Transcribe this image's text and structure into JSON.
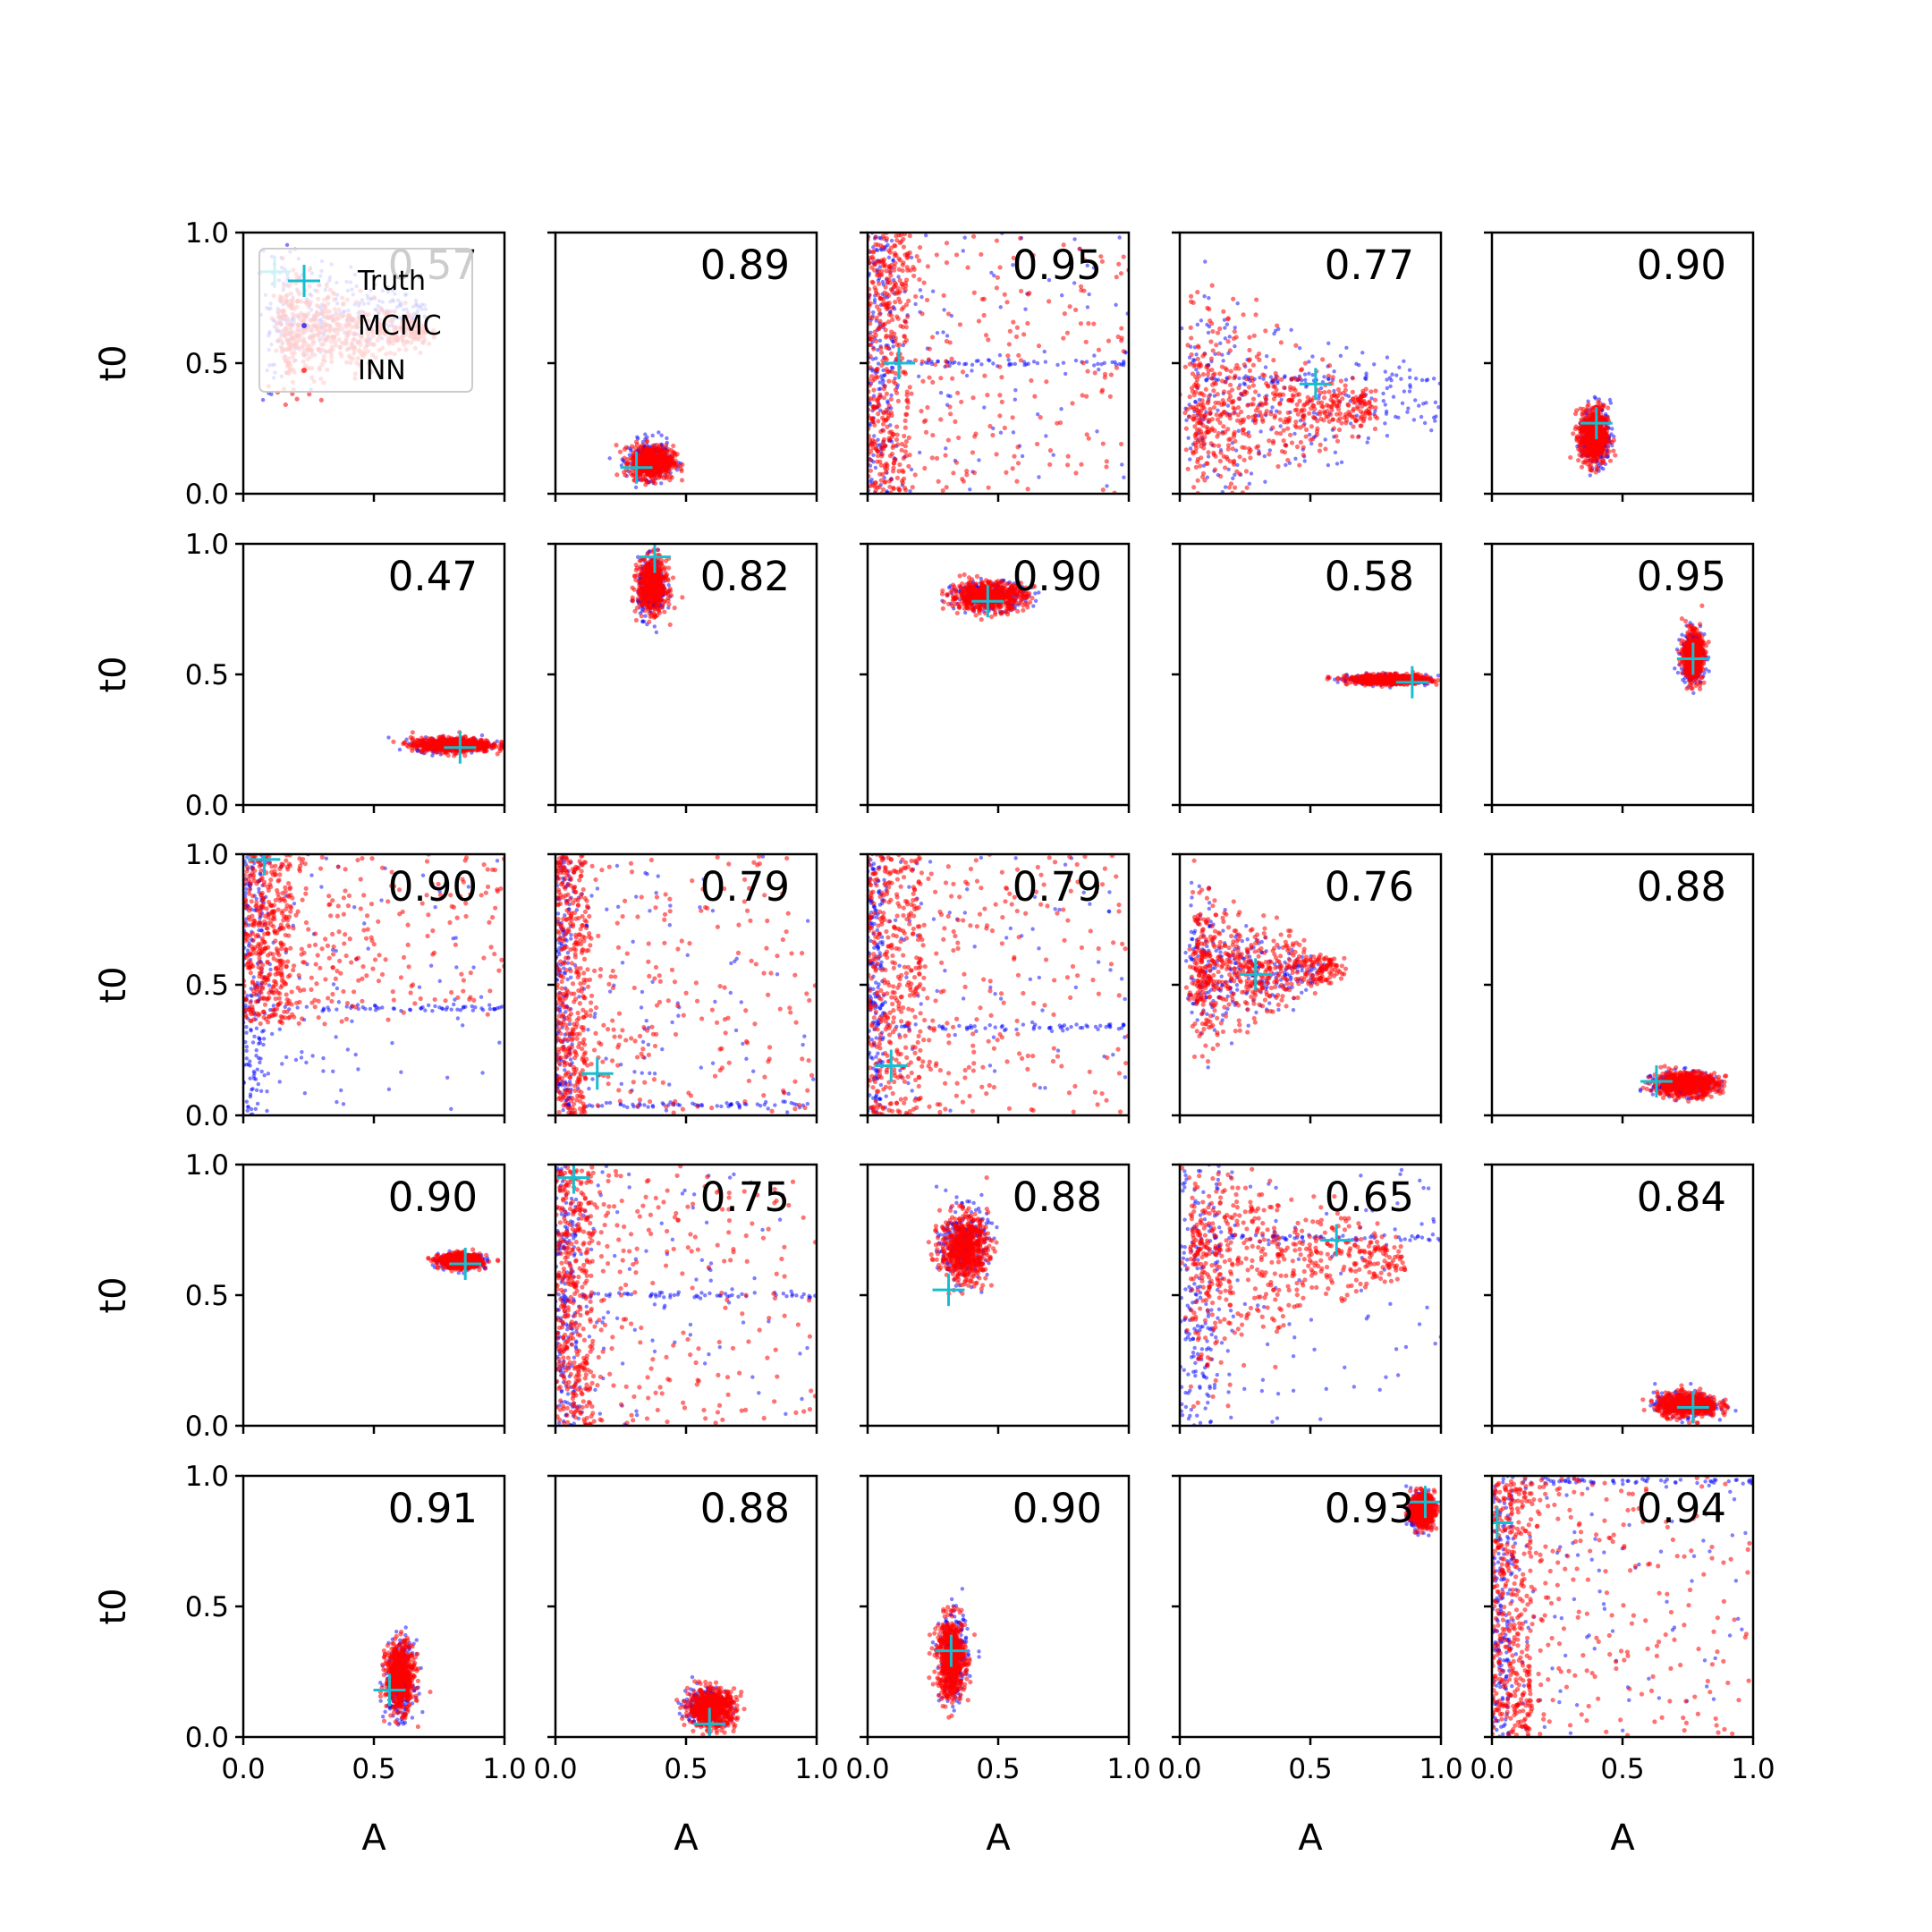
{
  "chart_data": {
    "type": "scatter",
    "layout": {
      "rows": 5,
      "cols": 5
    },
    "xlabel": "A",
    "ylabel": "t0",
    "xlim": [
      0,
      1
    ],
    "ylim": [
      0,
      1
    ],
    "xticks": [
      "0.0",
      "0.5",
      "1.0"
    ],
    "yticks": [
      "0.0",
      "0.5",
      "1.0"
    ],
    "legend": {
      "position": "upper left of first panel",
      "entries": [
        {
          "label": "Truth",
          "marker": "plus",
          "color": "#17becf"
        },
        {
          "label": "MCMC",
          "marker": "dot",
          "color": "#0000ff"
        },
        {
          "label": "INN",
          "marker": "dot",
          "color": "#ff0000"
        }
      ]
    },
    "colors": {
      "truth": "#17becf",
      "mcmc": "#0000ff",
      "inn": "#ff0000"
    },
    "panels": [
      {
        "label": "0.57",
        "truth": [
          0.12,
          0.85
        ],
        "mcmc": {
          "shape": "wedge",
          "cx": 0.1,
          "cy": 0.7,
          "sx": 0.6,
          "sy": 0.2,
          "spread": 0.35,
          "density": 0.9,
          "dir": "right"
        },
        "inn": {
          "shape": "wedge",
          "cx": 0.15,
          "cy": 0.62,
          "sx": 0.55,
          "sy": 0.18,
          "spread": 0.3,
          "density": 1.0,
          "dir": "right"
        }
      },
      {
        "label": "0.89",
        "truth": [
          0.31,
          0.1
        ],
        "mcmc": {
          "shape": "blob",
          "cx": 0.36,
          "cy": 0.13,
          "sx": 0.09,
          "sy": 0.08,
          "density": 0.8
        },
        "inn": {
          "shape": "blob",
          "cx": 0.37,
          "cy": 0.12,
          "sx": 0.09,
          "sy": 0.07,
          "density": 1.0
        }
      },
      {
        "label": "0.95",
        "truth": [
          0.12,
          0.5
        ],
        "mcmc": {
          "shape": "left-band",
          "x0": 0.0,
          "x1": 0.1,
          "density": 0.8,
          "line_y": 0.5
        },
        "inn": {
          "shape": "left-band",
          "x0": 0.0,
          "x1": 0.15,
          "density": 1.0
        }
      },
      {
        "label": "0.77",
        "truth": [
          0.52,
          0.42
        ],
        "mcmc": {
          "shape": "wedge",
          "cx": 0.05,
          "cy": 0.35,
          "sx": 1.0,
          "sy": 0.3,
          "spread": 0.6,
          "density": 0.8,
          "dir": "right",
          "line_y": 0.44
        },
        "inn": {
          "shape": "wedge",
          "cx": 0.05,
          "cy": 0.33,
          "sx": 0.7,
          "sy": 0.25,
          "spread": 0.45,
          "density": 1.0,
          "dir": "right"
        }
      },
      {
        "label": "0.90",
        "truth": [
          0.4,
          0.27
        ],
        "mcmc": {
          "shape": "blob",
          "cx": 0.4,
          "cy": 0.22,
          "sx": 0.06,
          "sy": 0.13,
          "density": 0.8
        },
        "inn": {
          "shape": "blob",
          "cx": 0.39,
          "cy": 0.22,
          "sx": 0.06,
          "sy": 0.12,
          "density": 1.0
        }
      },
      {
        "label": "0.47",
        "truth": [
          0.83,
          0.22
        ],
        "mcmc": {
          "shape": "blob",
          "cx": 0.8,
          "cy": 0.23,
          "sx": 0.16,
          "sy": 0.03,
          "density": 0.6
        },
        "inn": {
          "shape": "blob",
          "cx": 0.8,
          "cy": 0.23,
          "sx": 0.17,
          "sy": 0.03,
          "density": 1.0
        }
      },
      {
        "label": "0.82",
        "truth": [
          0.38,
          0.95
        ],
        "mcmc": {
          "shape": "blob",
          "cx": 0.37,
          "cy": 0.83,
          "sx": 0.06,
          "sy": 0.12,
          "density": 0.8
        },
        "inn": {
          "shape": "blob",
          "cx": 0.37,
          "cy": 0.84,
          "sx": 0.06,
          "sy": 0.11,
          "density": 1.0
        }
      },
      {
        "label": "0.90",
        "truth": [
          0.46,
          0.78
        ],
        "mcmc": {
          "shape": "blob",
          "cx": 0.47,
          "cy": 0.8,
          "sx": 0.16,
          "sy": 0.06,
          "density": 0.7
        },
        "inn": {
          "shape": "blob",
          "cx": 0.46,
          "cy": 0.8,
          "sx": 0.16,
          "sy": 0.06,
          "density": 1.0
        }
      },
      {
        "label": "0.58",
        "truth": [
          0.89,
          0.47
        ],
        "mcmc": {
          "shape": "blob",
          "cx": 0.8,
          "cy": 0.48,
          "sx": 0.17,
          "sy": 0.02,
          "density": 0.6
        },
        "inn": {
          "shape": "blob",
          "cx": 0.8,
          "cy": 0.48,
          "sx": 0.17,
          "sy": 0.02,
          "density": 1.0
        }
      },
      {
        "label": "0.95",
        "truth": [
          0.77,
          0.56
        ],
        "mcmc": {
          "shape": "blob",
          "cx": 0.77,
          "cy": 0.57,
          "sx": 0.05,
          "sy": 0.11,
          "density": 0.8
        },
        "inn": {
          "shape": "blob",
          "cx": 0.77,
          "cy": 0.57,
          "sx": 0.04,
          "sy": 0.1,
          "density": 1.0
        }
      },
      {
        "label": "0.90",
        "truth": [
          0.08,
          0.98
        ],
        "mcmc": {
          "shape": "left-band",
          "x0": 0.0,
          "x1": 0.08,
          "density": 0.8,
          "line_y": 0.41
        },
        "inn": {
          "shape": "left-band",
          "x0": 0.0,
          "x1": 0.18,
          "density": 1.0,
          "ymin": 0.35
        }
      },
      {
        "label": "0.79",
        "truth": [
          0.16,
          0.16
        ],
        "mcmc": {
          "shape": "left-band",
          "x0": 0.0,
          "x1": 0.06,
          "density": 0.8,
          "line_y": 0.04
        },
        "inn": {
          "shape": "left-band",
          "x0": 0.0,
          "x1": 0.12,
          "density": 1.0
        }
      },
      {
        "label": "0.79",
        "truth": [
          0.09,
          0.19
        ],
        "mcmc": {
          "shape": "left-band",
          "x0": 0.0,
          "x1": 0.06,
          "density": 0.8,
          "line_y": 0.34
        },
        "inn": {
          "shape": "left-band",
          "x0": 0.0,
          "x1": 0.2,
          "density": 1.0
        }
      },
      {
        "label": "0.76",
        "truth": [
          0.29,
          0.54
        ],
        "mcmc": {
          "shape": "wedge",
          "cx": 0.05,
          "cy": 0.55,
          "sx": 0.5,
          "sy": 0.2,
          "spread": 0.35,
          "density": 0.6,
          "dir": "right"
        },
        "inn": {
          "shape": "wedge",
          "cx": 0.06,
          "cy": 0.56,
          "sx": 0.55,
          "sy": 0.2,
          "spread": 0.35,
          "density": 1.0,
          "dir": "right"
        }
      },
      {
        "label": "0.88",
        "truth": [
          0.63,
          0.13
        ],
        "mcmc": {
          "shape": "blob",
          "cx": 0.73,
          "cy": 0.12,
          "sx": 0.13,
          "sy": 0.05,
          "density": 0.7
        },
        "inn": {
          "shape": "blob",
          "cx": 0.74,
          "cy": 0.12,
          "sx": 0.14,
          "sy": 0.05,
          "density": 1.0
        }
      },
      {
        "label": "0.90",
        "truth": [
          0.85,
          0.62
        ],
        "mcmc": {
          "shape": "blob",
          "cx": 0.84,
          "cy": 0.63,
          "sx": 0.1,
          "sy": 0.03,
          "density": 0.7
        },
        "inn": {
          "shape": "blob",
          "cx": 0.83,
          "cy": 0.63,
          "sx": 0.09,
          "sy": 0.03,
          "density": 1.0
        }
      },
      {
        "label": "0.75",
        "truth": [
          0.07,
          0.95
        ],
        "mcmc": {
          "shape": "left-band",
          "x0": 0.0,
          "x1": 0.08,
          "density": 0.8,
          "line_y": 0.5
        },
        "inn": {
          "shape": "left-band",
          "x0": 0.0,
          "x1": 0.14,
          "density": 1.0
        }
      },
      {
        "label": "0.88",
        "truth": [
          0.31,
          0.52
        ],
        "mcmc": {
          "shape": "blob",
          "cx": 0.37,
          "cy": 0.7,
          "sx": 0.1,
          "sy": 0.15,
          "density": 0.8
        },
        "inn": {
          "shape": "blob",
          "cx": 0.37,
          "cy": 0.68,
          "sx": 0.1,
          "sy": 0.14,
          "density": 1.0
        }
      },
      {
        "label": "0.65",
        "truth": [
          0.6,
          0.71
        ],
        "mcmc": {
          "shape": "left-band",
          "x0": 0.0,
          "x1": 0.15,
          "density": 0.8,
          "line_y": 0.72
        },
        "inn": {
          "shape": "wedge",
          "cx": 0.05,
          "cy": 0.65,
          "sx": 0.8,
          "sy": 0.3,
          "spread": 0.55,
          "density": 1.0,
          "dir": "right"
        }
      },
      {
        "label": "0.84",
        "truth": [
          0.77,
          0.07
        ],
        "mcmc": {
          "shape": "blob",
          "cx": 0.74,
          "cy": 0.08,
          "sx": 0.13,
          "sy": 0.05,
          "density": 0.8
        },
        "inn": {
          "shape": "blob",
          "cx": 0.75,
          "cy": 0.08,
          "sx": 0.13,
          "sy": 0.05,
          "density": 1.0
        }
      },
      {
        "label": "0.91",
        "truth": [
          0.56,
          0.18
        ],
        "mcmc": {
          "shape": "blob",
          "cx": 0.6,
          "cy": 0.22,
          "sx": 0.06,
          "sy": 0.16,
          "density": 0.8
        },
        "inn": {
          "shape": "blob",
          "cx": 0.6,
          "cy": 0.23,
          "sx": 0.06,
          "sy": 0.14,
          "density": 1.0
        }
      },
      {
        "label": "0.88",
        "truth": [
          0.59,
          0.05
        ],
        "mcmc": {
          "shape": "blob",
          "cx": 0.58,
          "cy": 0.12,
          "sx": 0.1,
          "sy": 0.08,
          "density": 0.8
        },
        "inn": {
          "shape": "blob",
          "cx": 0.6,
          "cy": 0.11,
          "sx": 0.1,
          "sy": 0.08,
          "density": 1.0
        }
      },
      {
        "label": "0.90",
        "truth": [
          0.32,
          0.33
        ],
        "mcmc": {
          "shape": "blob",
          "cx": 0.33,
          "cy": 0.3,
          "sx": 0.06,
          "sy": 0.18,
          "density": 0.8
        },
        "inn": {
          "shape": "blob",
          "cx": 0.32,
          "cy": 0.3,
          "sx": 0.06,
          "sy": 0.17,
          "density": 1.0
        }
      },
      {
        "label": "0.93",
        "truth": [
          0.94,
          0.9
        ],
        "mcmc": {
          "shape": "blob",
          "cx": 0.92,
          "cy": 0.86,
          "sx": 0.05,
          "sy": 0.07,
          "density": 0.7
        },
        "inn": {
          "shape": "blob",
          "cx": 0.93,
          "cy": 0.87,
          "sx": 0.05,
          "sy": 0.07,
          "density": 1.0
        }
      },
      {
        "label": "0.94",
        "truth": [
          0.02,
          0.82
        ],
        "mcmc": {
          "shape": "left-band",
          "x0": 0.0,
          "x1": 0.08,
          "density": 0.8,
          "line_y": 0.98
        },
        "inn": {
          "shape": "left-band",
          "x0": 0.0,
          "x1": 0.15,
          "density": 1.0
        }
      }
    ]
  }
}
